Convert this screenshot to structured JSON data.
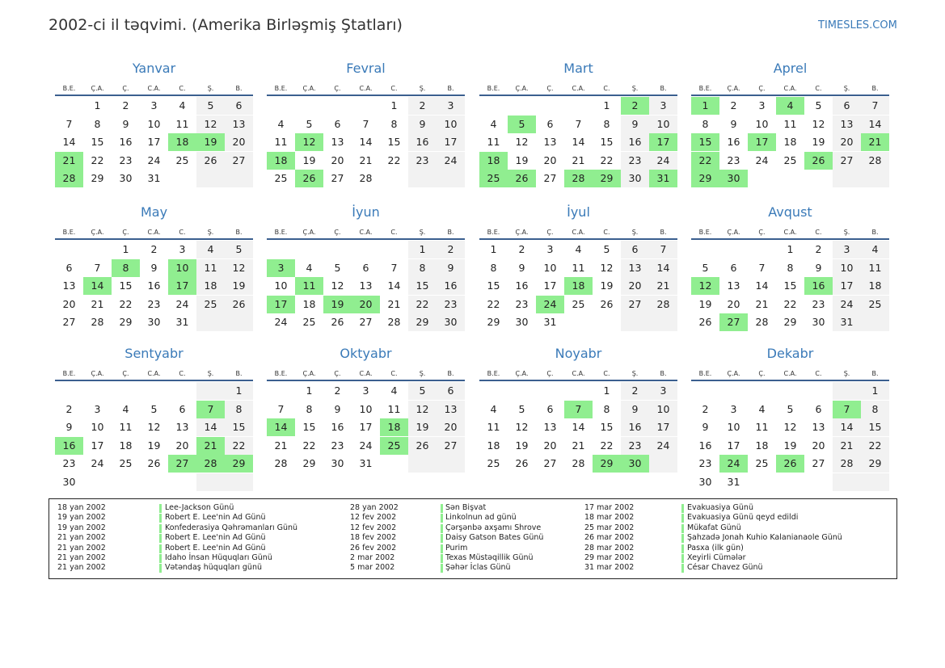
{
  "header": {
    "title": "2002-ci il təqvimi. (Amerika Birləşmiş Ştatları)",
    "site": "TIMESLES.COM"
  },
  "weekdays": [
    "B.E.",
    "Ç.A.",
    "Ç.",
    "C.A.",
    "C.",
    "Ş.",
    "B."
  ],
  "months": [
    {
      "name": "Yanvar",
      "weeks": [
        [
          null,
          1,
          2,
          3,
          4,
          5,
          6
        ],
        [
          7,
          8,
          9,
          10,
          11,
          12,
          13
        ],
        [
          14,
          15,
          16,
          17,
          18,
          19,
          20
        ],
        [
          21,
          22,
          23,
          24,
          25,
          26,
          27
        ],
        [
          28,
          29,
          30,
          31,
          null,
          null,
          null
        ]
      ],
      "highlights": [
        18,
        19,
        21,
        28
      ]
    },
    {
      "name": "Fevral",
      "weeks": [
        [
          null,
          null,
          null,
          null,
          1,
          2,
          3
        ],
        [
          4,
          5,
          6,
          7,
          8,
          9,
          10
        ],
        [
          11,
          12,
          13,
          14,
          15,
          16,
          17
        ],
        [
          18,
          19,
          20,
          21,
          22,
          23,
          24
        ],
        [
          25,
          26,
          27,
          28,
          null,
          null,
          null
        ]
      ],
      "highlights": [
        12,
        18,
        26
      ]
    },
    {
      "name": "Mart",
      "weeks": [
        [
          null,
          null,
          null,
          null,
          1,
          2,
          3
        ],
        [
          4,
          5,
          6,
          7,
          8,
          9,
          10
        ],
        [
          11,
          12,
          13,
          14,
          15,
          16,
          17
        ],
        [
          18,
          19,
          20,
          21,
          22,
          23,
          24
        ],
        [
          25,
          26,
          27,
          28,
          29,
          30,
          31
        ]
      ],
      "highlights": [
        2,
        5,
        17,
        18,
        25,
        26,
        28,
        29,
        31
      ]
    },
    {
      "name": "Aprel",
      "weeks": [
        [
          1,
          2,
          3,
          4,
          5,
          6,
          7
        ],
        [
          8,
          9,
          10,
          11,
          12,
          13,
          14
        ],
        [
          15,
          16,
          17,
          18,
          19,
          20,
          21
        ],
        [
          22,
          23,
          24,
          25,
          26,
          27,
          28
        ],
        [
          29,
          30,
          null,
          null,
          null,
          null,
          null
        ]
      ],
      "highlights": [
        1,
        4,
        15,
        17,
        21,
        22,
        26,
        29,
        30
      ]
    },
    {
      "name": "May",
      "weeks": [
        [
          null,
          null,
          1,
          2,
          3,
          4,
          5
        ],
        [
          6,
          7,
          8,
          9,
          10,
          11,
          12
        ],
        [
          13,
          14,
          15,
          16,
          17,
          18,
          19
        ],
        [
          20,
          21,
          22,
          23,
          24,
          25,
          26
        ],
        [
          27,
          28,
          29,
          30,
          31,
          null,
          null
        ]
      ],
      "highlights": [
        8,
        10,
        14,
        17
      ]
    },
    {
      "name": "İyun",
      "weeks": [
        [
          null,
          null,
          null,
          null,
          null,
          1,
          2
        ],
        [
          3,
          4,
          5,
          6,
          7,
          8,
          9
        ],
        [
          10,
          11,
          12,
          13,
          14,
          15,
          16
        ],
        [
          17,
          18,
          19,
          20,
          21,
          22,
          23
        ],
        [
          24,
          25,
          26,
          27,
          28,
          29,
          30
        ]
      ],
      "highlights": [
        3,
        11,
        17,
        19,
        20
      ]
    },
    {
      "name": "İyul",
      "weeks": [
        [
          1,
          2,
          3,
          4,
          5,
          6,
          7
        ],
        [
          8,
          9,
          10,
          11,
          12,
          13,
          14
        ],
        [
          15,
          16,
          17,
          18,
          19,
          20,
          21
        ],
        [
          22,
          23,
          24,
          25,
          26,
          27,
          28
        ],
        [
          29,
          30,
          31,
          null,
          null,
          null,
          null
        ]
      ],
      "highlights": [
        18,
        24
      ]
    },
    {
      "name": "Avqust",
      "weeks": [
        [
          null,
          null,
          null,
          1,
          2,
          3,
          4
        ],
        [
          5,
          6,
          7,
          8,
          9,
          10,
          11
        ],
        [
          12,
          13,
          14,
          15,
          16,
          17,
          18
        ],
        [
          19,
          20,
          21,
          22,
          23,
          24,
          25
        ],
        [
          26,
          27,
          28,
          29,
          30,
          31,
          null
        ]
      ],
      "highlights": [
        12,
        16,
        27
      ]
    },
    {
      "name": "Sentyabr",
      "weeks": [
        [
          null,
          null,
          null,
          null,
          null,
          null,
          1
        ],
        [
          2,
          3,
          4,
          5,
          6,
          7,
          8
        ],
        [
          9,
          10,
          11,
          12,
          13,
          14,
          15
        ],
        [
          16,
          17,
          18,
          19,
          20,
          21,
          22
        ],
        [
          23,
          24,
          25,
          26,
          27,
          28,
          29
        ],
        [
          30,
          null,
          null,
          null,
          null,
          null,
          null
        ]
      ],
      "highlights": [
        7,
        16,
        21,
        27,
        28,
        29
      ]
    },
    {
      "name": "Oktyabr",
      "weeks": [
        [
          null,
          1,
          2,
          3,
          4,
          5,
          6
        ],
        [
          7,
          8,
          9,
          10,
          11,
          12,
          13
        ],
        [
          14,
          15,
          16,
          17,
          18,
          19,
          20
        ],
        [
          21,
          22,
          23,
          24,
          25,
          26,
          27
        ],
        [
          28,
          29,
          30,
          31,
          null,
          null,
          null
        ]
      ],
      "highlights": [
        14,
        18,
        25
      ]
    },
    {
      "name": "Noyabr",
      "weeks": [
        [
          null,
          null,
          null,
          null,
          1,
          2,
          3
        ],
        [
          4,
          5,
          6,
          7,
          8,
          9,
          10
        ],
        [
          11,
          12,
          13,
          14,
          15,
          16,
          17
        ],
        [
          18,
          19,
          20,
          21,
          22,
          23,
          24
        ],
        [
          25,
          26,
          27,
          28,
          29,
          30,
          null
        ]
      ],
      "highlights": [
        7,
        29,
        30
      ]
    },
    {
      "name": "Dekabr",
      "weeks": [
        [
          null,
          null,
          null,
          null,
          null,
          null,
          1
        ],
        [
          2,
          3,
          4,
          5,
          6,
          7,
          8
        ],
        [
          9,
          10,
          11,
          12,
          13,
          14,
          15
        ],
        [
          16,
          17,
          18,
          19,
          20,
          21,
          22
        ],
        [
          23,
          24,
          25,
          26,
          27,
          28,
          29
        ],
        [
          30,
          31,
          null,
          null,
          null,
          null,
          null
        ]
      ],
      "highlights": [
        7,
        24,
        26
      ]
    }
  ],
  "holidays": [
    {
      "date": "18 yan 2002",
      "name": "Lee-Jackson Günü"
    },
    {
      "date": "19 yan 2002",
      "name": "Robert E. Lee'nin Ad Günü"
    },
    {
      "date": "19 yan 2002",
      "name": "Konfederasiya Qəhrəmanları Günü"
    },
    {
      "date": "21 yan 2002",
      "name": "Robert E. Lee'nin Ad Günü"
    },
    {
      "date": "21 yan 2002",
      "name": "Robert E. Lee'nin Ad Günü"
    },
    {
      "date": "21 yan 2002",
      "name": "Idaho İnsan Hüquqları Günü"
    },
    {
      "date": "21 yan 2002",
      "name": "Vətəndaş hüquqları günü"
    },
    {
      "date": "28 yan 2002",
      "name": "Sən Bişvat"
    },
    {
      "date": "12 fev 2002",
      "name": "Linkolnun ad günü"
    },
    {
      "date": "12 fev 2002",
      "name": "Çərşənbə axşamı Shrove"
    },
    {
      "date": "18 fev 2002",
      "name": "Daisy Gatson Bates Günü"
    },
    {
      "date": "26 fev 2002",
      "name": "Purim"
    },
    {
      "date": "2 mar 2002",
      "name": "Texas Müstəqillik Günü"
    },
    {
      "date": "5 mar 2002",
      "name": "Şəhər İclas Günü"
    },
    {
      "date": "17 mar 2002",
      "name": "Evakuasiya Günü"
    },
    {
      "date": "18 mar 2002",
      "name": "Evakuasiya Günü qeyd edildi"
    },
    {
      "date": "25 mar 2002",
      "name": "Mükafat Günü"
    },
    {
      "date": "26 mar 2002",
      "name": "Şahzadə Jonah Kuhio Kalanianaole Günü"
    },
    {
      "date": "28 mar 2002",
      "name": "Pasxa (ilk gün)"
    },
    {
      "date": "29 mar 2002",
      "name": "Xeyirli Cümələr"
    },
    {
      "date": "31 mar 2002",
      "name": "César Chavez Günü"
    }
  ]
}
